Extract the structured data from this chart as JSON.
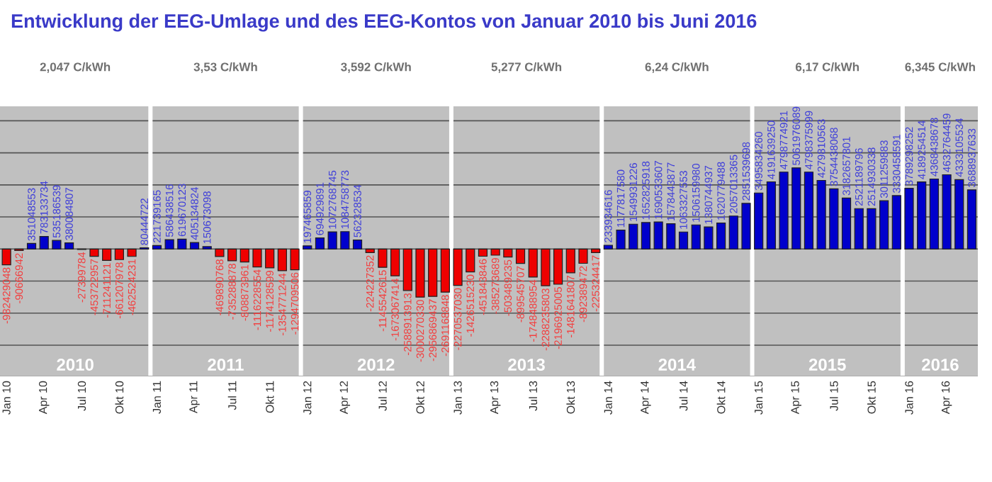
{
  "chart_data": {
    "type": "bar",
    "title": "Entwicklung der EEG-Umlage und des EEG-Kontos von Januar 2010 bis Juni 2016",
    "x": [
      "2010-01",
      "2010-02",
      "2010-03",
      "2010-04",
      "2010-05",
      "2010-06",
      "2010-07",
      "2010-08",
      "2010-09",
      "2010-10",
      "2010-11",
      "2010-12",
      "2011-01",
      "2011-02",
      "2011-03",
      "2011-04",
      "2011-05",
      "2011-06",
      "2011-07",
      "2011-08",
      "2011-09",
      "2011-10",
      "2011-11",
      "2011-12",
      "2012-01",
      "2012-02",
      "2012-03",
      "2012-04",
      "2012-05",
      "2012-06",
      "2012-07",
      "2012-08",
      "2012-09",
      "2012-10",
      "2012-11",
      "2012-12",
      "2013-01",
      "2013-02",
      "2013-03",
      "2013-04",
      "2013-05",
      "2013-06",
      "2013-07",
      "2013-08",
      "2013-09",
      "2013-10",
      "2013-11",
      "2013-12",
      "2014-01",
      "2014-02",
      "2014-03",
      "2014-04",
      "2014-05",
      "2014-06",
      "2014-07",
      "2014-08",
      "2014-09",
      "2014-10",
      "2014-11",
      "2014-12",
      "2015-01",
      "2015-02",
      "2015-03",
      "2015-04",
      "2015-05",
      "2015-06",
      "2015-07",
      "2015-08",
      "2015-09",
      "2015-10",
      "2015-11",
      "2015-12",
      "2016-01",
      "2016-02",
      "2016-03",
      "2016-04",
      "2016-05",
      "2016-06"
    ],
    "values": [
      -982429048,
      -90666942,
      351048553,
      783133734,
      535186539,
      380084807,
      -27399784,
      -453722957,
      -711241121,
      -661207978,
      -462524231,
      80444722,
      221739165,
      586438516,
      619670123,
      405134824,
      150673098,
      -469890768,
      -735288878,
      -808873961,
      -1116228554,
      -1174128599,
      -1354771244,
      -1294709506,
      197465859,
      694929891,
      1072768745,
      1084758773,
      562328534,
      -224227352,
      -1145542615,
      -1673067414,
      -2588913913,
      -3000270330,
      -2956869437,
      -2691168848,
      -2270537030,
      -1426515230,
      -451843846,
      -385273689,
      -503489235,
      -899545707,
      -1748488954,
      -2288235803,
      -2196925005,
      -1481641807,
      -892389472,
      -225324417,
      233934616,
      1177817580,
      1549931226,
      1652825918,
      1690533607,
      1578443877,
      1063327553,
      1506159980,
      1380744937,
      1620779488,
      2057013365,
      2851539698,
      3495834260,
      4191639250,
      4798774921,
      5061976089,
      4798375999,
      4279810563,
      3754438068,
      3182657801,
      2521189796,
      2514930338,
      3011259883,
      3330458591,
      3789298252,
      4189254514,
      4368438678,
      4632764459,
      4333105534,
      3688937633
    ],
    "colors": [
      "#ee0000",
      "#ee0000",
      "#0000cc",
      "#0000cc",
      "#0000cc",
      "#0000cc",
      "#ee0000",
      "#ee0000",
      "#ee0000",
      "#ee0000",
      "#ee0000",
      "#0000cc",
      "#0000cc",
      "#0000cc",
      "#0000cc",
      "#0000cc",
      "#0000cc",
      "#ee0000",
      "#ee0000",
      "#ee0000",
      "#ee0000",
      "#ee0000",
      "#ee0000",
      "#ee0000",
      "#0000cc",
      "#0000cc",
      "#0000cc",
      "#0000cc",
      "#0000cc",
      "#ee0000",
      "#ee0000",
      "#ee0000",
      "#ee0000",
      "#ee0000",
      "#ee0000",
      "#ee0000",
      "#ee0000",
      "#ee0000",
      "#ee0000",
      "#ee0000",
      "#ee0000",
      "#ee0000",
      "#ee0000",
      "#ee0000",
      "#ee0000",
      "#ee0000",
      "#ee0000",
      "#ee0000",
      "#0000cc",
      "#0000cc",
      "#0000cc",
      "#0000cc",
      "#0000cc",
      "#0000cc",
      "#0000cc",
      "#0000cc",
      "#0000cc",
      "#0000cc",
      "#0000cc",
      "#0000cc",
      "#0000cc",
      "#0000cc",
      "#0000cc",
      "#0000cc",
      "#0000cc",
      "#0000cc",
      "#0000cc",
      "#0000cc",
      "#0000cc",
      "#0000cc",
      "#0000cc",
      "#0000cc",
      "#0000cc",
      "#0000cc",
      "#0000cc",
      "#0000cc",
      "#0000cc",
      "#0000cc"
    ],
    "data_labels": true,
    "xlim": [
      "2009-12-16",
      "2016-06-16"
    ],
    "xticks": [
      {
        "value": "2010-01",
        "label": "Jan 10"
      },
      {
        "value": "2010-04",
        "label": "Apr 10"
      },
      {
        "value": "2010-07",
        "label": "Jul 10"
      },
      {
        "value": "2010-10",
        "label": "Okt 10"
      },
      {
        "value": "2011-01",
        "label": "Jan 11"
      },
      {
        "value": "2011-04",
        "label": "Apr 11"
      },
      {
        "value": "2011-07",
        "label": "Jul 11"
      },
      {
        "value": "2011-10",
        "label": "Okt 11"
      },
      {
        "value": "2012-01",
        "label": "Jan 12"
      },
      {
        "value": "2012-04",
        "label": "Apr 12"
      },
      {
        "value": "2012-07",
        "label": "Jul 12"
      },
      {
        "value": "2012-10",
        "label": "Okt 12"
      },
      {
        "value": "2013-01",
        "label": "Jan 13"
      },
      {
        "value": "2013-04",
        "label": "Apr 13"
      },
      {
        "value": "2013-07",
        "label": "Jul 13"
      },
      {
        "value": "2013-10",
        "label": "Okt 13"
      },
      {
        "value": "2014-01",
        "label": "Jan 14"
      },
      {
        "value": "2014-04",
        "label": "Apr 14"
      },
      {
        "value": "2014-07",
        "label": "Jul 14"
      },
      {
        "value": "2014-10",
        "label": "Okt 14"
      },
      {
        "value": "2015-01",
        "label": "Jan 15"
      },
      {
        "value": "2015-04",
        "label": "Apr 15"
      },
      {
        "value": "2015-07",
        "label": "Jul 15"
      },
      {
        "value": "2015-10",
        "label": "Okt 15"
      },
      {
        "value": "2016-01",
        "label": "Jan 16"
      },
      {
        "value": "2016-04",
        "label": "Apr 16"
      }
    ],
    "ylim": [
      -7900000000,
      8900000000
    ],
    "yticks": [
      {
        "value": -6000000000,
        "label": null
      },
      {
        "value": -4000000000,
        "label": null
      },
      {
        "value": -2000000000,
        "label": null
      },
      {
        "value": 0,
        "label": null
      },
      {
        "value": 2000000000,
        "label": null
      },
      {
        "value": 4000000000,
        "label": null
      },
      {
        "value": 6000000000,
        "label": null
      },
      {
        "value": 8000000000,
        "label": null
      }
    ],
    "tick_labels": "x",
    "grid": "y",
    "bands": [
      {
        "axis": "x",
        "from": "2009-12-16",
        "to": "2010-12-16",
        "label": "2010",
        "color": "#c0c0c0"
      },
      {
        "axis": "x",
        "from": "2010-12-16",
        "to": "2011-12-16",
        "label": "2011",
        "color": "#c0c0c0"
      },
      {
        "axis": "x",
        "from": "2011-12-16",
        "to": "2012-12-16",
        "label": "2012",
        "color": "#c0c0c0"
      },
      {
        "axis": "x",
        "from": "2012-12-16",
        "to": "2013-12-16",
        "label": "2013",
        "color": "#c0c0c0"
      },
      {
        "axis": "x",
        "from": "2013-12-16",
        "to": "2014-12-16",
        "label": "2014",
        "color": "#c0c0c0"
      },
      {
        "axis": "x",
        "from": "2014-12-16",
        "to": "2015-12-16",
        "label": "2015",
        "color": "#c0c0c0"
      },
      {
        "axis": "x",
        "from": "2015-12-16",
        "to": "2016-06-16",
        "label": "2016",
        "color": "#c0c0c0"
      }
    ],
    "annotations": [
      "2,047 C/kWh",
      "3,53 C/kWh",
      "3,592 C/kWh",
      "5,277 C/kWh",
      "6,24 C/kWh",
      "6,17 C/kWh",
      "6,345 C/kWh"
    ]
  }
}
